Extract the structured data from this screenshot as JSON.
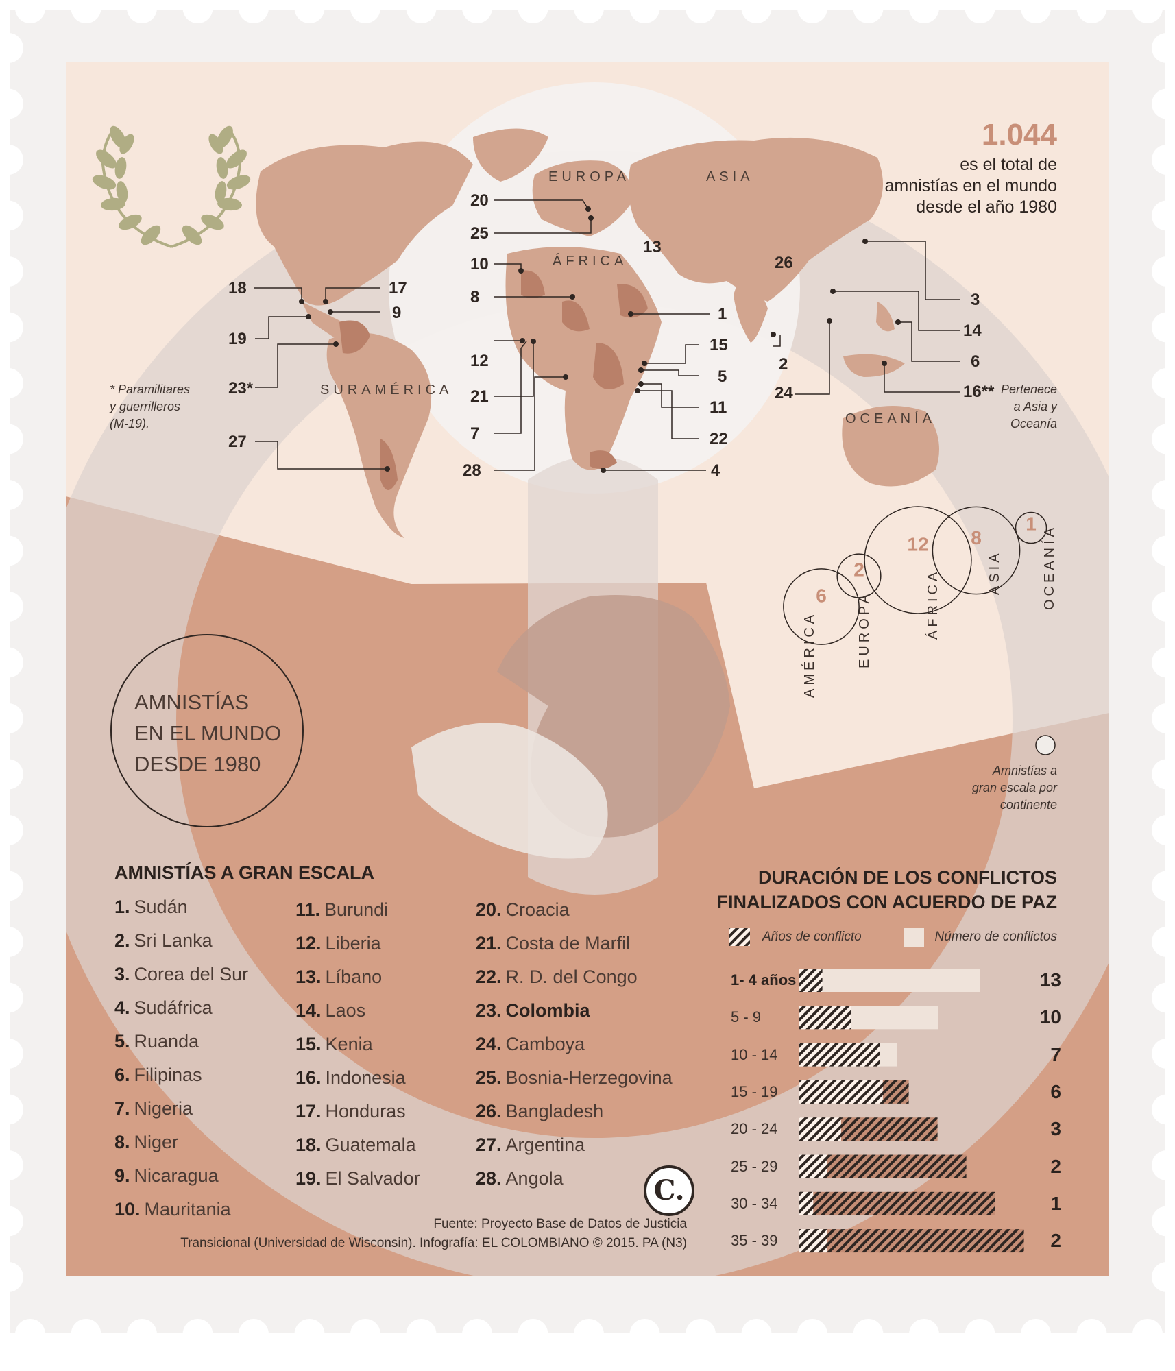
{
  "total": {
    "number": "1.044",
    "text_line1": "es el total de",
    "text_line2": "amnistías en el mundo",
    "text_line3": "desde el año 1980"
  },
  "badge": {
    "line1": "AMNISTÍAS",
    "line2": "EN EL MUNDO",
    "line3": "DESDE 1980"
  },
  "map": {
    "continents": {
      "europa": "EUROPA",
      "asia": "ASIA",
      "africa": "ÁFRICA",
      "suramerica": "SURAMÉRICA",
      "oceania": "OCEANÍA"
    },
    "markers": [
      "20",
      "25",
      "10",
      "8",
      "12",
      "21",
      "7",
      "28",
      "13",
      "1",
      "15",
      "5",
      "11",
      "22",
      "4",
      "26",
      "2",
      "24",
      "3",
      "14",
      "6",
      "16**",
      "18",
      "17",
      "9",
      "19",
      "23*",
      "27"
    ],
    "note_colombia": [
      "* Paramilitares",
      "y guerrilleros",
      "(M-19)."
    ],
    "note_indonesia": [
      "Pertenece",
      "a Asia y",
      "Oceanía"
    ]
  },
  "continent_bubbles": {
    "items": [
      {
        "name": "AMÉRICA",
        "value": 6
      },
      {
        "name": "EUROPA",
        "value": 2
      },
      {
        "name": "ÁFRICA",
        "value": 12
      },
      {
        "name": "ASIA",
        "value": 8
      },
      {
        "name": "OCEANÍA",
        "value": 1
      }
    ],
    "legend": [
      "Amnistías a",
      "gran escala por",
      "continente"
    ]
  },
  "list": {
    "title": "AMNISTÍAS A GRAN ESCALA",
    "items": [
      {
        "n": "1.",
        "country": "Sudán"
      },
      {
        "n": "2.",
        "country": "Sri Lanka"
      },
      {
        "n": "3.",
        "country": "Corea del Sur"
      },
      {
        "n": "4.",
        "country": "Sudáfrica"
      },
      {
        "n": "5.",
        "country": "Ruanda"
      },
      {
        "n": "6.",
        "country": "Filipinas"
      },
      {
        "n": "7.",
        "country": "Nigeria"
      },
      {
        "n": "8.",
        "country": "Niger"
      },
      {
        "n": "9.",
        "country": "Nicaragua"
      },
      {
        "n": "10.",
        "country": "Mauritania"
      },
      {
        "n": "11.",
        "country": "Burundi"
      },
      {
        "n": "12.",
        "country": "Liberia"
      },
      {
        "n": "13.",
        "country": "Líbano"
      },
      {
        "n": "14.",
        "country": "Laos"
      },
      {
        "n": "15.",
        "country": "Kenia"
      },
      {
        "n": "16.",
        "country": "Indonesia"
      },
      {
        "n": "17.",
        "country": "Honduras"
      },
      {
        "n": "18.",
        "country": "Guatemala"
      },
      {
        "n": "19.",
        "country": "El Salvador"
      },
      {
        "n": "20.",
        "country": "Croacia"
      },
      {
        "n": "21.",
        "country": "Costa de Marfil"
      },
      {
        "n": "22.",
        "country": "R. D. del Congo"
      },
      {
        "n": "23.",
        "country": "Colombia"
      },
      {
        "n": "24.",
        "country": "Camboya"
      },
      {
        "n": "25.",
        "country": "Bosnia-Herzegovina"
      },
      {
        "n": "26.",
        "country": "Bangladesh"
      },
      {
        "n": "27.",
        "country": "Argentina"
      },
      {
        "n": "28.",
        "country": "Angola"
      }
    ]
  },
  "chart_data": {
    "type": "bar",
    "title": "DURACIÓN DE LOS CONFLICTOS FINALIZADOS CON ACUERDO DE PAZ",
    "title_line1": "DURACIÓN DE LOS CONFLICTOS",
    "title_line2": "FINALIZADOS CON ACUERDO DE PAZ",
    "legend": [
      "Años de conflicto",
      "Número de conflictos"
    ],
    "categories": [
      "1- 4 años",
      "5 - 9",
      "10 - 14",
      "15 - 19",
      "20 - 24",
      "25 - 29",
      "30 - 34",
      "35 - 39"
    ],
    "values": [
      13,
      10,
      7,
      6,
      3,
      2,
      1,
      2
    ],
    "years_start": [
      1,
      5,
      10,
      15,
      20,
      25,
      30,
      35
    ],
    "years_end": [
      4,
      9,
      14,
      19,
      24,
      29,
      34,
      39
    ],
    "xlim": [
      0,
      40
    ],
    "colors": {
      "years": "#2f2622",
      "count": "#efe3da"
    }
  },
  "source": {
    "line1": "Fuente: Proyecto Base de Datos de Justicia",
    "line2": "Transicional (Universidad de Wisconsin). Infografía: EL COLOMBIANO © 2015. PA (N3)"
  },
  "logo": {
    "letter": "C."
  },
  "colors": {
    "paper": "#f7e7dc",
    "terracotta": "#d49f86",
    "map": "#d2a58f",
    "ghost": "#e4dbd6",
    "laurel": "#b0ad84"
  }
}
